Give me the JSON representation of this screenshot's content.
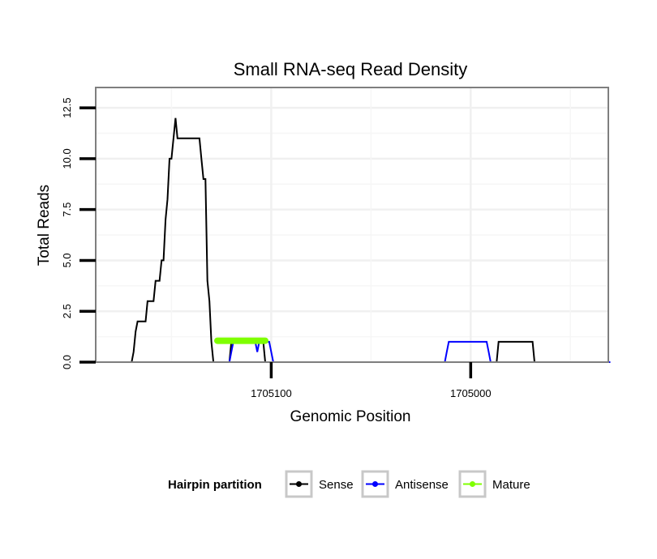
{
  "chart_data": {
    "type": "line",
    "title": "Small RNA-seq Read Density",
    "xlabel": "Genomic Position",
    "ylabel": "Total Reads",
    "x_reversed": true,
    "xlim": [
      1705188,
      1704931
    ],
    "ylim": [
      0,
      13.5
    ],
    "x_ticks": [
      1705100,
      1705000
    ],
    "x_tick_labels": [
      "1705100",
      "1705000"
    ],
    "y_ticks": [
      0,
      2.5,
      5,
      7.5,
      10,
      12.5
    ],
    "y_tick_labels": [
      "0.0",
      "2.5",
      "5.0",
      "7.5",
      "10.0",
      "12.5"
    ],
    "legend": {
      "title": "Hairpin partition",
      "position": "bottom",
      "items": [
        {
          "label": "Sense",
          "color": "#000000"
        },
        {
          "label": "Antisense",
          "color": "#0000ff"
        },
        {
          "label": "Mature",
          "color": "#7fff00"
        }
      ]
    },
    "series": [
      {
        "name": "Sense",
        "color": "#000000",
        "x": [
          1705179,
          1705170,
          1705169,
          1705168,
          1705167,
          1705165,
          1705164,
          1705163,
          1705162,
          1705161,
          1705159,
          1705158,
          1705157,
          1705156,
          1705155,
          1705154,
          1705153,
          1705152,
          1705151,
          1705150,
          1705149,
          1705148,
          1705147,
          1705146,
          1705145,
          1705144,
          1705143,
          1705142,
          1705141,
          1705137,
          1705136,
          1705135,
          1705134,
          1705133,
          1705132,
          1705131,
          1705130,
          1705129,
          1705128,
          1705127,
          1705126,
          1705121,
          1705120,
          1705119,
          1705107,
          1705106,
          1705105,
          1705104,
          1705103,
          1705102,
          1705101,
          1704987,
          1704986,
          1704985,
          1704970,
          1704969,
          1704968,
          1704930
        ],
        "y": [
          0,
          0,
          0.5,
          1.5,
          2,
          2,
          2,
          2,
          3,
          3,
          3,
          4,
          4,
          4,
          5,
          5,
          7,
          8,
          10,
          10,
          11,
          12,
          11,
          11,
          11,
          11,
          11,
          11,
          11,
          11,
          11,
          10,
          9,
          9,
          4,
          3,
          1,
          0,
          0,
          0,
          0,
          0,
          1,
          1,
          1,
          1,
          1,
          1,
          0,
          0,
          0,
          0,
          1,
          1,
          1,
          1,
          0,
          0
        ]
      },
      {
        "name": "Antisense",
        "color": "#0000ff",
        "x": [
          1705179,
          1705121,
          1705120,
          1705119,
          1705108,
          1705107,
          1705106,
          1705101,
          1705100,
          1705099,
          1705013,
          1705012,
          1705011,
          1704992,
          1704991,
          1704990,
          1704985,
          1704975,
          1704930
        ],
        "y": [
          0,
          0,
          0.5,
          1,
          1,
          0.5,
          1,
          1,
          0.5,
          0,
          0,
          0.5,
          1,
          1,
          0.5,
          0,
          0,
          0,
          0
        ]
      },
      {
        "name": "Mature",
        "color": "#7fff00",
        "x": [
          1705127,
          1705103
        ],
        "y": [
          1.05,
          1.05
        ]
      }
    ]
  }
}
